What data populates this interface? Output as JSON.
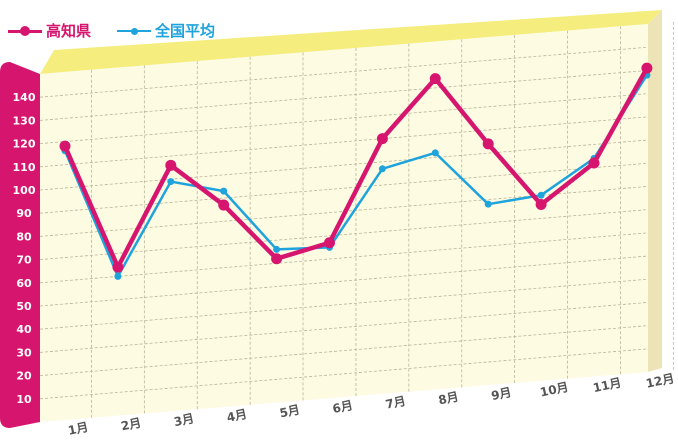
{
  "chart_data": {
    "type": "line",
    "categories": [
      "1月",
      "2月",
      "3月",
      "4月",
      "5月",
      "6月",
      "7月",
      "8月",
      "9月",
      "10月",
      "11月",
      "12月"
    ],
    "series": [
      {
        "name": "高知県",
        "values": [
          118,
          64,
          106,
          87,
          62,
          67,
          110,
          134,
          104,
          76,
          92,
          131
        ],
        "color": "#d6166e"
      },
      {
        "name": "全国平均",
        "values": [
          116,
          60,
          99,
          93,
          66,
          65,
          97,
          102,
          78,
          80,
          94,
          128
        ],
        "color": "#1ea3dc"
      }
    ],
    "yticks": [
      10,
      20,
      30,
      40,
      50,
      60,
      70,
      80,
      90,
      100,
      110,
      120,
      130,
      140
    ],
    "ylim": [
      0,
      150
    ],
    "grid": true,
    "legend_position": "top-left",
    "colors": {
      "plot_face": "#fdfbe2",
      "top_face": "#f5ee7f",
      "axis_band": "#d6166e",
      "label": "#555555"
    }
  }
}
